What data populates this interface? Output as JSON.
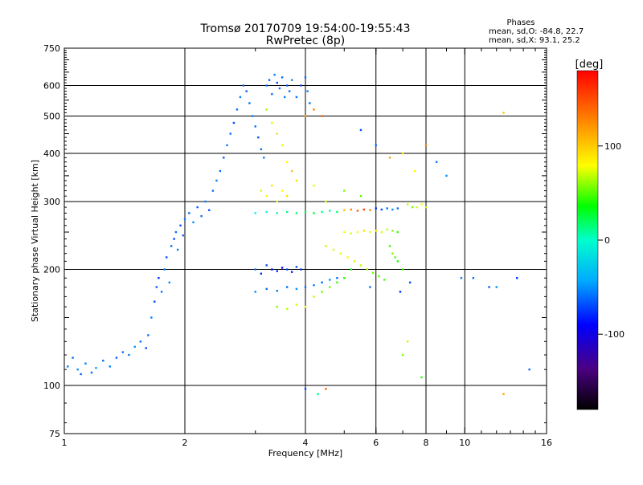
{
  "chart_data": {
    "type": "scatter",
    "title": "Tromsø 20170709 19:54:00-19:55:43",
    "subtitle": "RwPretec (8p)",
    "xlabel": "Frequency [MHz]",
    "ylabel": "Stationary phase Virtual Height [km]",
    "x_scale": "log",
    "y_scale": "log",
    "xlim": [
      1,
      16
    ],
    "ylim": [
      75,
      750
    ],
    "x_ticks": [
      1,
      2,
      4,
      6,
      8,
      10,
      16
    ],
    "x_minor_ticks": [
      3,
      5,
      7,
      9
    ],
    "y_ticks": [
      75,
      100,
      200,
      300,
      400,
      500,
      600,
      750
    ],
    "y_gridlines": [
      100,
      200,
      300,
      400,
      500,
      600
    ],
    "x_gridlines": [
      2,
      4,
      6,
      8,
      10
    ],
    "grid": true,
    "stats": {
      "header": "Phases",
      "o_line": "mean, sd,O: -84.8, 22.7",
      "x_line": "mean, sd,X:  93.1, 25.2"
    },
    "colorbar": {
      "label": "[deg]",
      "range": [
        -180,
        180
      ],
      "ticks": [
        100,
        0,
        -100
      ],
      "colormap": "rainbow (black-purple-blue-cyan-green-yellow-orange-red)"
    },
    "points": [
      [
        1.02,
        112,
        -95
      ],
      [
        1.05,
        118,
        -100
      ],
      [
        1.08,
        110,
        -90
      ],
      [
        1.1,
        107,
        -105
      ],
      [
        1.13,
        114,
        -95
      ],
      [
        1.17,
        108,
        -100
      ],
      [
        1.2,
        111,
        -85
      ],
      [
        1.25,
        116,
        -100
      ],
      [
        1.3,
        112,
        -95
      ],
      [
        1.35,
        118,
        -105
      ],
      [
        1.4,
        122,
        -100
      ],
      [
        1.45,
        120,
        -95
      ],
      [
        1.5,
        126,
        -90
      ],
      [
        1.55,
        130,
        -100
      ],
      [
        1.6,
        125,
        -110
      ],
      [
        1.62,
        135,
        -100
      ],
      [
        1.65,
        150,
        -95
      ],
      [
        1.68,
        165,
        -110
      ],
      [
        1.7,
        180,
        -105
      ],
      [
        1.72,
        190,
        -120
      ],
      [
        1.75,
        175,
        -100
      ],
      [
        1.78,
        200,
        -95
      ],
      [
        1.8,
        215,
        -110
      ],
      [
        1.83,
        185,
        -90
      ],
      [
        1.85,
        230,
        -100
      ],
      [
        1.88,
        240,
        -115
      ],
      [
        1.9,
        250,
        -100
      ],
      [
        1.92,
        225,
        -95
      ],
      [
        1.95,
        260,
        -110
      ],
      [
        1.98,
        245,
        -100
      ],
      [
        2.0,
        270,
        -95
      ],
      [
        2.05,
        280,
        -100
      ],
      [
        2.1,
        265,
        -90
      ],
      [
        2.15,
        290,
        -105
      ],
      [
        2.2,
        275,
        -100
      ],
      [
        2.25,
        300,
        -95
      ],
      [
        2.3,
        285,
        -110
      ],
      [
        2.35,
        320,
        -100
      ],
      [
        2.4,
        340,
        -95
      ],
      [
        2.45,
        360,
        -100
      ],
      [
        2.5,
        390,
        -105
      ],
      [
        2.55,
        420,
        -95
      ],
      [
        2.6,
        450,
        -100
      ],
      [
        2.65,
        480,
        -110
      ],
      [
        2.7,
        520,
        -100
      ],
      [
        2.75,
        560,
        -95
      ],
      [
        2.8,
        600,
        -100
      ],
      [
        2.85,
        580,
        -105
      ],
      [
        2.9,
        540,
        -100
      ],
      [
        2.95,
        500,
        -95
      ],
      [
        3.0,
        470,
        -100
      ],
      [
        3.05,
        440,
        -110
      ],
      [
        3.1,
        410,
        -100
      ],
      [
        3.15,
        390,
        -95
      ],
      [
        3.2,
        600,
        -100
      ],
      [
        3.25,
        620,
        -105
      ],
      [
        3.3,
        570,
        -100
      ],
      [
        3.35,
        640,
        -95
      ],
      [
        3.4,
        610,
        -110
      ],
      [
        3.45,
        590,
        -100
      ],
      [
        3.5,
        630,
        -100
      ],
      [
        3.55,
        560,
        -95
      ],
      [
        3.6,
        600,
        -105
      ],
      [
        3.65,
        580,
        -100
      ],
      [
        3.7,
        620,
        -90
      ],
      [
        3.8,
        560,
        -100
      ],
      [
        3.9,
        600,
        -110
      ],
      [
        4.0,
        630,
        -100
      ],
      [
        4.05,
        580,
        -95
      ],
      [
        4.1,
        540,
        -100
      ],
      [
        3.2,
        520,
        70
      ],
      [
        3.3,
        480,
        90
      ],
      [
        3.4,
        450,
        110
      ],
      [
        3.5,
        420,
        95
      ],
      [
        3.6,
        380,
        100
      ],
      [
        3.7,
        360,
        120
      ],
      [
        3.8,
        340,
        110
      ],
      [
        4.0,
        500,
        130
      ],
      [
        4.2,
        520,
        140
      ],
      [
        4.4,
        500,
        150
      ],
      [
        3.0,
        200,
        -100
      ],
      [
        3.1,
        195,
        -120
      ],
      [
        3.2,
        205,
        -110
      ],
      [
        3.3,
        200,
        -130
      ],
      [
        3.4,
        198,
        -120
      ],
      [
        3.5,
        202,
        -140
      ],
      [
        3.6,
        200,
        -115
      ],
      [
        3.7,
        197,
        -125
      ],
      [
        3.8,
        203,
        -110
      ],
      [
        3.9,
        200,
        -120
      ],
      [
        3.0,
        175,
        -90
      ],
      [
        3.2,
        178,
        -100
      ],
      [
        3.4,
        176,
        -95
      ],
      [
        3.6,
        180,
        -100
      ],
      [
        3.8,
        178,
        -90
      ],
      [
        4.0,
        180,
        -100
      ],
      [
        4.2,
        182,
        -95
      ],
      [
        4.4,
        185,
        -100
      ],
      [
        4.6,
        188,
        -90
      ],
      [
        4.8,
        190,
        -100
      ],
      [
        3.4,
        160,
        60
      ],
      [
        3.6,
        158,
        80
      ],
      [
        3.8,
        162,
        90
      ],
      [
        4.0,
        160,
        100
      ],
      [
        4.2,
        170,
        80
      ],
      [
        4.4,
        175,
        60
      ],
      [
        4.6,
        180,
        50
      ],
      [
        4.8,
        185,
        40
      ],
      [
        5.0,
        190,
        30
      ],
      [
        5.2,
        200,
        20
      ],
      [
        3.0,
        280,
        -60
      ],
      [
        3.2,
        282,
        -40
      ],
      [
        3.4,
        280,
        -30
      ],
      [
        3.6,
        282,
        -20
      ],
      [
        3.8,
        280,
        -10
      ],
      [
        4.0,
        282,
        0
      ],
      [
        4.2,
        280,
        10
      ],
      [
        4.4,
        282,
        -20
      ],
      [
        4.6,
        284,
        -30
      ],
      [
        4.8,
        282,
        -10
      ],
      [
        5.0,
        285,
        120
      ],
      [
        5.2,
        286,
        140
      ],
      [
        5.4,
        284,
        150
      ],
      [
        5.6,
        286,
        160
      ],
      [
        5.8,
        285,
        140
      ],
      [
        6.0,
        288,
        -120
      ],
      [
        6.2,
        286,
        -110
      ],
      [
        6.4,
        288,
        -100
      ],
      [
        6.6,
        286,
        -90
      ],
      [
        6.8,
        288,
        -100
      ],
      [
        5.0,
        250,
        100
      ],
      [
        5.2,
        248,
        90
      ],
      [
        5.4,
        250,
        100
      ],
      [
        5.6,
        252,
        110
      ],
      [
        5.8,
        250,
        95
      ],
      [
        6.0,
        252,
        100
      ],
      [
        6.2,
        250,
        90
      ],
      [
        6.4,
        254,
        80
      ],
      [
        6.6,
        252,
        60
      ],
      [
        6.8,
        250,
        40
      ],
      [
        4.5,
        230,
        80
      ],
      [
        4.7,
        225,
        90
      ],
      [
        4.9,
        220,
        95
      ],
      [
        5.1,
        215,
        100
      ],
      [
        5.3,
        210,
        90
      ],
      [
        5.5,
        205,
        80
      ],
      [
        5.7,
        200,
        70
      ],
      [
        5.9,
        196,
        60
      ],
      [
        6.1,
        192,
        50
      ],
      [
        6.3,
        188,
        40
      ],
      [
        3.1,
        320,
        90
      ],
      [
        3.2,
        310,
        100
      ],
      [
        3.3,
        330,
        110
      ],
      [
        3.4,
        300,
        95
      ],
      [
        3.5,
        320,
        100
      ],
      [
        3.6,
        310,
        110
      ],
      [
        4.2,
        330,
        90
      ],
      [
        4.5,
        300,
        80
      ],
      [
        5.0,
        320,
        60
      ],
      [
        5.5,
        310,
        50
      ],
      [
        6.5,
        230,
        40
      ],
      [
        6.6,
        220,
        60
      ],
      [
        6.7,
        215,
        50
      ],
      [
        6.8,
        210,
        30
      ],
      [
        7.0,
        200,
        40
      ],
      [
        7.2,
        295,
        80
      ],
      [
        7.4,
        290,
        60
      ],
      [
        7.6,
        290,
        90
      ],
      [
        7.8,
        295,
        100
      ],
      [
        8.0,
        290,
        80
      ],
      [
        5.5,
        460,
        -110
      ],
      [
        6.0,
        420,
        -100
      ],
      [
        6.5,
        390,
        130
      ],
      [
        7.0,
        400,
        110
      ],
      [
        7.5,
        360,
        100
      ],
      [
        8.0,
        420,
        140
      ],
      [
        8.5,
        380,
        -100
      ],
      [
        9.0,
        350,
        -90
      ],
      [
        7.2,
        130,
        80
      ],
      [
        7.0,
        120,
        60
      ],
      [
        10.5,
        190,
        -100
      ],
      [
        11.5,
        180,
        -105
      ],
      [
        12.0,
        180,
        -90
      ],
      [
        12.5,
        510,
        120
      ],
      [
        13.5,
        190,
        -120
      ],
      [
        14.5,
        110,
        -100
      ],
      [
        12.5,
        95,
        130
      ],
      [
        4.0,
        98,
        -110
      ],
      [
        4.3,
        95,
        -20
      ],
      [
        4.5,
        98,
        150
      ],
      [
        9.8,
        190,
        -95
      ],
      [
        7.8,
        105,
        40
      ],
      [
        5.8,
        180,
        -100
      ],
      [
        6.9,
        175,
        -120
      ],
      [
        7.3,
        185,
        -110
      ]
    ]
  }
}
